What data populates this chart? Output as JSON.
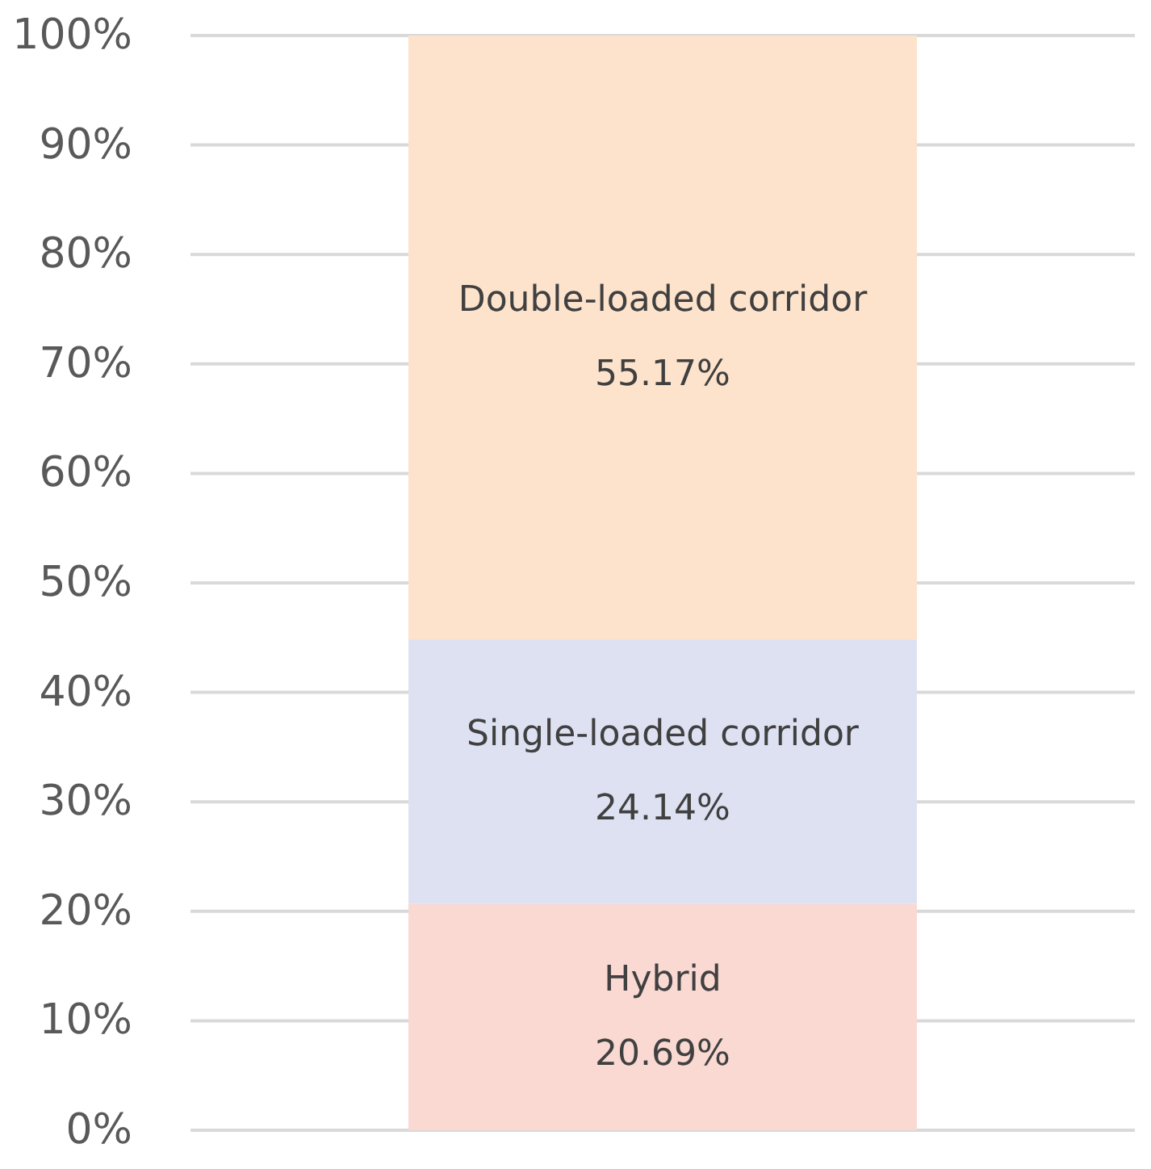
{
  "chart_data": {
    "type": "bar",
    "stacked": true,
    "categories": [
      null
    ],
    "series": [
      {
        "name": "Hybrid",
        "color": "#f9d9d2",
        "values": [
          20.69
        ],
        "value_labels": [
          "20.69%"
        ]
      },
      {
        "name": "Single-loaded corridor",
        "color": "#dde1f2",
        "values": [
          24.14
        ],
        "value_labels": [
          "24.14%"
        ]
      },
      {
        "name": "Double-loaded corridor",
        "color": "#fde3cc",
        "values": [
          55.17
        ],
        "value_labels": [
          "55.17%"
        ]
      }
    ],
    "ylim": [
      0,
      100
    ],
    "yticks": [
      {
        "value": 0,
        "label": "0%"
      },
      {
        "value": 10,
        "label": "10%"
      },
      {
        "value": 20,
        "label": "20%"
      },
      {
        "value": 30,
        "label": "30%"
      },
      {
        "value": 40,
        "label": "40%"
      },
      {
        "value": 50,
        "label": "50%"
      },
      {
        "value": 60,
        "label": "60%"
      },
      {
        "value": 70,
        "label": "70%"
      },
      {
        "value": 80,
        "label": "80%"
      },
      {
        "value": 90,
        "label": "90%"
      },
      {
        "value": 100,
        "label": "100%"
      }
    ],
    "grid": "y",
    "legend": false
  }
}
